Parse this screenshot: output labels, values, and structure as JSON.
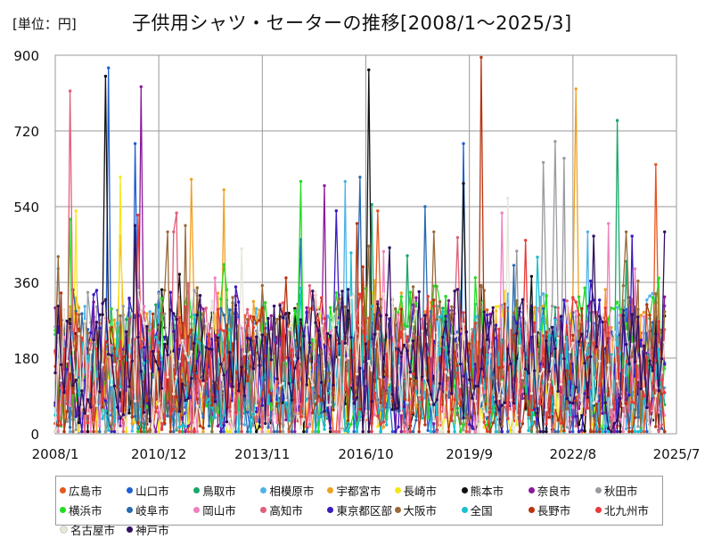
{
  "header": {
    "unit_label": "[単位：円]",
    "title": "子供用シャツ・セーターの推移[2008/1～2025/3]"
  },
  "chart_data": {
    "type": "line",
    "title": "子供用シャツ・セーターの推移[2008/1～2025/3]",
    "unit": "円",
    "x_range": [
      "2008/1",
      "2025/7"
    ],
    "x_ticks": [
      "2008/1",
      "2010/12",
      "2013/11",
      "2016/10",
      "2019/9",
      "2022/8",
      "2025/7"
    ],
    "ylim": [
      0,
      900
    ],
    "y_ticks": [
      0,
      180,
      360,
      540,
      720,
      900
    ],
    "grid": true,
    "legend_position": "bottom",
    "series": [
      {
        "name": "広島市",
        "color": "#e8561e",
        "peaks": [
          [
            "2024/12",
            640
          ],
          [
            "2017/2",
            530
          ]
        ]
      },
      {
        "name": "山口市",
        "color": "#1f5fd6",
        "peaks": [
          [
            "2009/7",
            870
          ],
          [
            "2019/7",
            690
          ],
          [
            "2010/4",
            690
          ]
        ]
      },
      {
        "name": "鳥取市",
        "color": "#1aa86a",
        "peaks": [
          [
            "2023/11",
            745
          ],
          [
            "2016/12",
            545
          ]
        ]
      },
      {
        "name": "相模原市",
        "color": "#4fb3e8",
        "peaks": [
          [
            "2016/3",
            600
          ],
          [
            "2023/1",
            480
          ]
        ]
      },
      {
        "name": "宇都宮市",
        "color": "#f0a020",
        "peaks": [
          [
            "2022/9",
            820
          ],
          [
            "2011/11",
            605
          ],
          [
            "2012/10",
            580
          ]
        ]
      },
      {
        "name": "長崎市",
        "color": "#f5e61a",
        "peaks": [
          [
            "2009/11",
            610
          ],
          [
            "2008/8",
            530
          ]
        ]
      },
      {
        "name": "熊本市",
        "color": "#111111",
        "peaks": [
          [
            "2016/11",
            865
          ],
          [
            "2009/6",
            850
          ],
          [
            "2019/7",
            595
          ]
        ]
      },
      {
        "name": "奈良市",
        "color": "#8a1a9a",
        "peaks": [
          [
            "2010/6",
            825
          ],
          [
            "2015/8",
            590
          ]
        ]
      },
      {
        "name": "秋田市",
        "color": "#9a9aa0",
        "peaks": [
          [
            "2022/2",
            695
          ],
          [
            "2022/5",
            655
          ],
          [
            "2021/10",
            645
          ]
        ]
      },
      {
        "name": "横浜市",
        "color": "#22dd22",
        "peaks": [
          [
            "2014/12",
            600
          ],
          [
            "2008/6",
            510
          ]
        ]
      },
      {
        "name": "岐阜市",
        "color": "#2a6ab0",
        "peaks": [
          [
            "2016/8",
            610
          ],
          [
            "2018/6",
            540
          ]
        ]
      },
      {
        "name": "岡山市",
        "color": "#f080c0",
        "peaks": [
          [
            "2020/8",
            525
          ],
          [
            "2023/8",
            500
          ]
        ]
      },
      {
        "name": "高知市",
        "color": "#e0607a",
        "peaks": [
          [
            "2008/6",
            815
          ],
          [
            "2011/6",
            525
          ]
        ]
      },
      {
        "name": "東京都区部",
        "color": "#3a1ac0",
        "peaks": [
          [
            "2015/12",
            530
          ],
          [
            "2024/4",
            470
          ]
        ]
      },
      {
        "name": "大阪市",
        "color": "#9a6a3a",
        "peaks": [
          [
            "2011/9",
            495
          ],
          [
            "2018/9",
            480
          ]
        ]
      },
      {
        "name": "全国",
        "color": "#18c0d0",
        "peaks": [
          [
            "2016/5",
            430
          ],
          [
            "2021/8",
            420
          ]
        ]
      },
      {
        "name": "長野市",
        "color": "#b8340e",
        "peaks": [
          [
            "2020/1",
            895
          ],
          [
            "2016/7",
            500
          ]
        ]
      },
      {
        "name": "北九州市",
        "color": "#e83a3a",
        "peaks": [
          [
            "2010/5",
            520
          ],
          [
            "2021/4",
            460
          ]
        ]
      },
      {
        "name": "名古屋市",
        "color": "#e6e6da",
        "peaks": [
          [
            "2020/10",
            560
          ],
          [
            "2013/4",
            440
          ]
        ]
      },
      {
        "name": "神戸市",
        "color": "#301060",
        "peaks": [
          [
            "2010/4",
            495
          ],
          [
            "2023/3",
            470
          ]
        ]
      }
    ]
  }
}
